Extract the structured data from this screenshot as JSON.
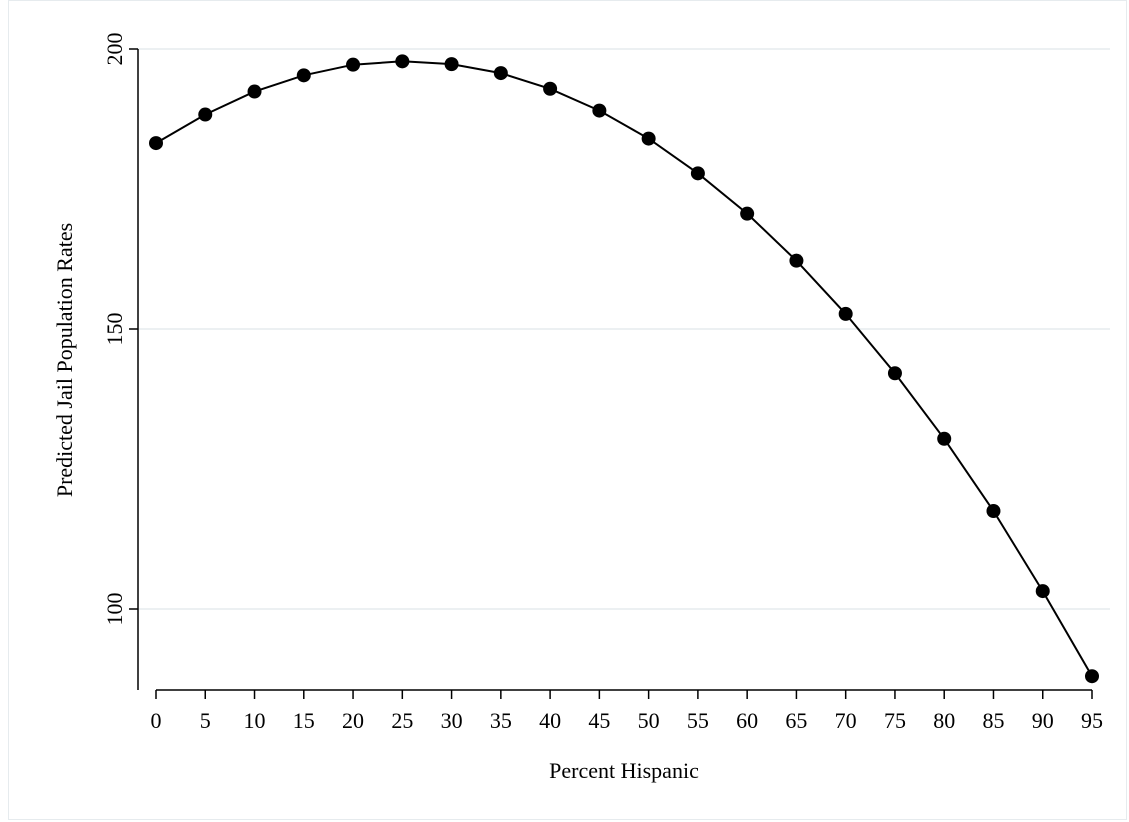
{
  "chart_data": {
    "type": "line",
    "xlabel": "Percent Hispanic",
    "ylabel": "Predicted Jail Population Rates",
    "x": [
      0,
      5,
      10,
      15,
      20,
      25,
      30,
      35,
      40,
      45,
      50,
      55,
      60,
      65,
      70,
      75,
      80,
      85,
      90,
      95
    ],
    "series": [
      {
        "values": [
          183.2,
          188.3,
          192.4,
          195.3,
          197.2,
          197.8,
          197.3,
          195.7,
          192.9,
          189.0,
          184.0,
          177.8,
          170.6,
          162.2,
          152.7,
          142.1,
          130.4,
          117.5,
          103.2,
          88.0
        ],
        "color": "#000000",
        "marker": "filled-circle"
      }
    ],
    "xticks": [
      0,
      5,
      10,
      15,
      20,
      25,
      30,
      35,
      40,
      45,
      50,
      55,
      60,
      65,
      70,
      75,
      80,
      85,
      90,
      95
    ],
    "yticks": [
      100,
      150,
      200
    ],
    "ylim": [
      86.1,
      203.2
    ],
    "grid": "horizontal",
    "grid_color": "#e6ebee",
    "legend": "none"
  }
}
